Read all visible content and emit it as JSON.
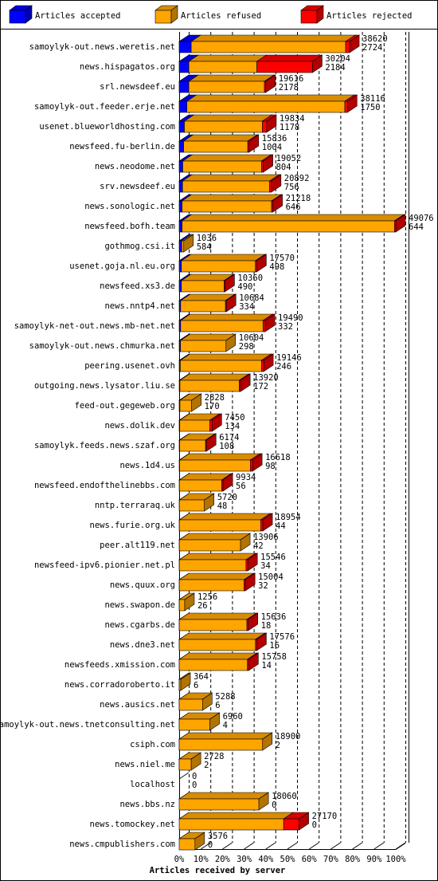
{
  "chart_data": {
    "type": "bar3d-stacked-horizontal",
    "x_label": "Articles received by server",
    "categories": [
      "samoylyk-out.news.weretis.net",
      "news.hispagatos.org",
      "srl.newsdeef.eu",
      "samoylyk-out.feeder.erje.net",
      "usenet.blueworldhosting.com",
      "newsfeed.fu-berlin.de",
      "news.neodome.net",
      "srv.newsdeef.eu",
      "news.sonologic.net",
      "newsfeed.bofh.team",
      "gothmog.csi.it",
      "usenet.goja.nl.eu.org",
      "newsfeed.xs3.de",
      "news.nntp4.net",
      "samoylyk-net-out.news.mb-net.net",
      "samoylyk-out.news.chmurka.net",
      "peering.usenet.ovh",
      "outgoing.news.lysator.liu.se",
      "feed-out.gegeweb.org",
      "news.dolik.dev",
      "samoylyk.feeds.news.szaf.org",
      "news.1d4.us",
      "newsfeed.endofthelinebbs.com",
      "nntp.terraraq.uk",
      "news.furie.org.uk",
      "peer.alt119.net",
      "newsfeed-ipv6.pionier.net.pl",
      "news.quux.org",
      "news.swapon.de",
      "news.cgarbs.de",
      "news.dne3.net",
      "newsfeeds.xmission.com",
      "news.corradoroberto.it",
      "news.ausics.net",
      "samoylyk-out.news.tnetconsulting.net",
      "csiph.com",
      "news.niel.me",
      "localhost",
      "news.bbs.nz",
      "news.tomockey.net",
      "news.cmpublishers.com"
    ],
    "totals": [
      38620,
      30204,
      19616,
      38116,
      19834,
      15836,
      19052,
      20892,
      21218,
      49076,
      1036,
      17570,
      10360,
      10684,
      19490,
      10604,
      19146,
      13920,
      2828,
      7450,
      6174,
      16618,
      9934,
      5720,
      18954,
      13906,
      15546,
      15004,
      1256,
      15636,
      17576,
      15758,
      364,
      5288,
      6960,
      18900,
      2728,
      0,
      18060,
      27170,
      3576
    ],
    "series": [
      {
        "name": "Articles accepted",
        "color": "#0000ff",
        "values": [
          2724,
          2184,
          2178,
          1750,
          1178,
          1004,
          804,
          756,
          646,
          644,
          584,
          498,
          490,
          334,
          332,
          298,
          246,
          172,
          170,
          134,
          108,
          98,
          56,
          48,
          44,
          42,
          34,
          32,
          26,
          18,
          16,
          14,
          6,
          6,
          4,
          2,
          2,
          0,
          0,
          0,
          0
        ]
      },
      {
        "name": "Articles refused",
        "color": "#ffa500",
        "values": [
          34996,
          15420,
          17138,
          35766,
          17656,
          14532,
          17848,
          19736,
          20272,
          48132,
          452,
          16772,
          9670,
          10150,
          18658,
          10306,
          18400,
          13448,
          2658,
          6816,
          5866,
          16020,
          9578,
          5672,
          18410,
          13864,
          15112,
          14672,
          1230,
          15318,
          17260,
          15444,
          358,
          5282,
          6956,
          18898,
          2726,
          0,
          18060,
          23670,
          3576
        ]
      },
      {
        "name": "Articles rejected",
        "color": "#ff0000",
        "values": [
          900,
          12600,
          300,
          600,
          1000,
          300,
          400,
          400,
          300,
          300,
          0,
          300,
          200,
          200,
          500,
          0,
          500,
          300,
          0,
          500,
          200,
          500,
          300,
          0,
          500,
          0,
          400,
          300,
          0,
          300,
          300,
          300,
          0,
          0,
          0,
          0,
          0,
          0,
          0,
          3500,
          0
        ]
      }
    ],
    "xlim": [
      0,
      49076
    ],
    "xticks": [
      {
        "value": 0,
        "label": "0%"
      },
      {
        "value": 4907.6,
        "label": "10%"
      },
      {
        "value": 9815.2,
        "label": "20%"
      },
      {
        "value": 14722.8,
        "label": "30%"
      },
      {
        "value": 19630.4,
        "label": "40%"
      },
      {
        "value": 24538,
        "label": "50%"
      },
      {
        "value": 29445.6,
        "label": "60%"
      },
      {
        "value": 34353.2,
        "label": "70%"
      },
      {
        "value": 39260.8,
        "label": "80%"
      },
      {
        "value": 44168.4,
        "label": "90%"
      },
      {
        "value": 49076,
        "label": "100%"
      }
    ],
    "grid": true
  }
}
